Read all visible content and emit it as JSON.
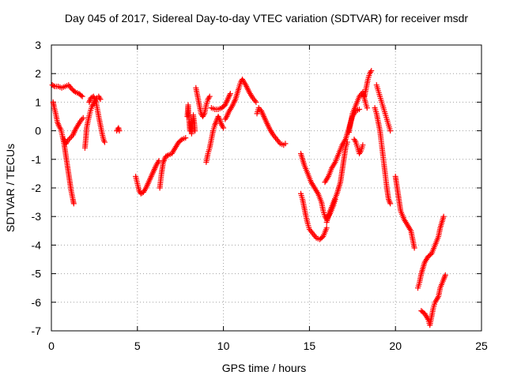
{
  "chart_data": {
    "type": "scatter",
    "title": "Day 045 of 2017, Sidereal Day-to-day VTEC variation (SDTVAR) for receiver msdr",
    "xlabel": "GPS time / hours",
    "ylabel": "SDTVAR / TECUs",
    "xlim": [
      0,
      25
    ],
    "ylim": [
      -7,
      3
    ],
    "xticks": [
      0,
      5,
      10,
      15,
      20,
      25
    ],
    "yticks": [
      3,
      2,
      1,
      0,
      -1,
      -2,
      -3,
      -4,
      -5,
      -6,
      -7
    ],
    "grid": true,
    "marker": "plus",
    "series": [
      {
        "name": "SDTVAR",
        "color": "#ff0000",
        "segments": [
          [
            [
              0.05,
              1.6
            ],
            [
              0.2,
              1.55
            ],
            [
              0.4,
              1.55
            ],
            [
              0.6,
              1.5
            ],
            [
              0.8,
              1.55
            ],
            [
              1.0,
              1.6
            ],
            [
              1.2,
              1.45
            ],
            [
              1.4,
              1.35
            ],
            [
              1.6,
              1.3
            ],
            [
              1.8,
              1.2
            ]
          ],
          [
            [
              0.1,
              1.0
            ],
            [
              0.15,
              0.85
            ],
            [
              0.25,
              0.6
            ],
            [
              0.35,
              0.3
            ],
            [
              0.45,
              0.15
            ],
            [
              0.55,
              0.05
            ],
            [
              0.65,
              -0.2
            ],
            [
              0.75,
              -0.5
            ],
            [
              0.85,
              -0.9
            ],
            [
              0.95,
              -1.3
            ],
            [
              1.05,
              -1.7
            ],
            [
              1.15,
              -2.1
            ],
            [
              1.25,
              -2.4
            ],
            [
              1.3,
              -2.55
            ]
          ],
          [
            [
              0.75,
              -0.3
            ],
            [
              0.85,
              -0.45
            ],
            [
              0.95,
              -0.35
            ],
            [
              1.1,
              -0.25
            ],
            [
              1.25,
              -0.15
            ],
            [
              1.4,
              0.05
            ],
            [
              1.55,
              0.2
            ],
            [
              1.7,
              0.35
            ],
            [
              1.85,
              0.45
            ]
          ],
          [
            [
              1.95,
              -0.6
            ],
            [
              2.0,
              -0.3
            ],
            [
              2.05,
              0.1
            ],
            [
              2.15,
              0.4
            ],
            [
              2.25,
              0.65
            ],
            [
              2.35,
              0.85
            ],
            [
              2.45,
              0.95
            ],
            [
              2.55,
              1.05
            ],
            [
              2.65,
              1.15
            ],
            [
              2.75,
              1.2
            ],
            [
              2.85,
              1.1
            ]
          ],
          [
            [
              2.2,
              1.0
            ],
            [
              2.3,
              1.15
            ],
            [
              2.45,
              1.2
            ],
            [
              2.6,
              1.0
            ],
            [
              2.75,
              0.5
            ],
            [
              2.85,
              0.2
            ],
            [
              2.95,
              -0.1
            ],
            [
              3.05,
              -0.35
            ],
            [
              3.1,
              -0.4
            ]
          ],
          [
            [
              3.8,
              0.0
            ],
            [
              3.85,
              0.05
            ],
            [
              3.9,
              0.1
            ],
            [
              3.95,
              0.0
            ]
          ],
          [
            [
              4.9,
              -1.6
            ],
            [
              5.0,
              -1.85
            ],
            [
              5.1,
              -2.1
            ],
            [
              5.2,
              -2.2
            ],
            [
              5.35,
              -2.15
            ],
            [
              5.5,
              -2.0
            ],
            [
              5.65,
              -1.8
            ],
            [
              5.8,
              -1.6
            ],
            [
              5.95,
              -1.4
            ],
            [
              6.1,
              -1.2
            ],
            [
              6.25,
              -1.05
            ]
          ],
          [
            [
              6.3,
              -2.0
            ],
            [
              6.4,
              -1.5
            ],
            [
              6.5,
              -1.1
            ],
            [
              6.65,
              -0.9
            ],
            [
              6.8,
              -0.85
            ],
            [
              7.0,
              -0.8
            ],
            [
              7.2,
              -0.6
            ],
            [
              7.4,
              -0.4
            ],
            [
              7.6,
              -0.3
            ],
            [
              7.8,
              -0.25
            ]
          ],
          [
            [
              7.9,
              0.5
            ],
            [
              7.95,
              0.9
            ],
            [
              8.0,
              0.4
            ],
            [
              8.05,
              0.0
            ],
            [
              8.1,
              0.3
            ],
            [
              8.15,
              -0.1
            ],
            [
              8.2,
              0.2
            ],
            [
              8.25,
              0.55
            ],
            [
              8.3,
              0.3
            ],
            [
              8.35,
              0.0
            ]
          ],
          [
            [
              8.4,
              1.5
            ],
            [
              8.5,
              1.2
            ],
            [
              8.6,
              0.9
            ],
            [
              8.7,
              0.6
            ],
            [
              8.8,
              0.5
            ],
            [
              8.9,
              0.6
            ],
            [
              9.0,
              0.9
            ],
            [
              9.1,
              1.1
            ],
            [
              9.2,
              1.2
            ]
          ],
          [
            [
              9.0,
              -1.1
            ],
            [
              9.1,
              -0.8
            ],
            [
              9.2,
              -0.6
            ],
            [
              9.3,
              -0.3
            ],
            [
              9.4,
              0.0
            ],
            [
              9.5,
              0.2
            ],
            [
              9.6,
              0.35
            ],
            [
              9.7,
              0.5
            ],
            [
              9.8,
              0.35
            ],
            [
              9.9,
              0.2
            ],
            [
              10.0,
              0.1
            ]
          ],
          [
            [
              9.3,
              0.8
            ],
            [
              9.5,
              0.75
            ],
            [
              9.7,
              0.75
            ],
            [
              9.9,
              0.8
            ],
            [
              10.1,
              0.9
            ],
            [
              10.25,
              1.1
            ],
            [
              10.4,
              1.3
            ]
          ],
          [
            [
              10.1,
              0.4
            ],
            [
              10.2,
              0.5
            ],
            [
              10.3,
              0.65
            ],
            [
              10.5,
              0.85
            ],
            [
              10.7,
              1.1
            ],
            [
              10.9,
              1.5
            ],
            [
              11.0,
              1.7
            ],
            [
              11.1,
              1.8
            ],
            [
              11.3,
              1.6
            ],
            [
              11.5,
              1.35
            ],
            [
              11.7,
              1.15
            ],
            [
              11.9,
              1.0
            ]
          ],
          [
            [
              11.95,
              0.6
            ],
            [
              12.05,
              0.8
            ],
            [
              12.2,
              0.7
            ],
            [
              12.35,
              0.5
            ],
            [
              12.5,
              0.3
            ],
            [
              12.7,
              0.05
            ],
            [
              12.9,
              -0.15
            ],
            [
              13.1,
              -0.3
            ],
            [
              13.3,
              -0.45
            ],
            [
              13.5,
              -0.5
            ],
            [
              13.6,
              -0.45
            ]
          ],
          [
            [
              14.5,
              -2.2
            ],
            [
              14.6,
              -2.4
            ],
            [
              14.7,
              -2.7
            ],
            [
              14.8,
              -3.0
            ],
            [
              14.9,
              -3.25
            ],
            [
              15.0,
              -3.45
            ],
            [
              15.2,
              -3.6
            ],
            [
              15.4,
              -3.75
            ],
            [
              15.6,
              -3.8
            ],
            [
              15.8,
              -3.7
            ],
            [
              16.0,
              -3.4
            ]
          ],
          [
            [
              14.5,
              -0.8
            ],
            [
              14.7,
              -1.2
            ],
            [
              14.9,
              -1.5
            ],
            [
              15.1,
              -1.8
            ],
            [
              15.3,
              -2.0
            ],
            [
              15.5,
              -2.2
            ],
            [
              15.7,
              -2.5
            ],
            [
              15.8,
              -2.8
            ],
            [
              15.9,
              -3.0
            ],
            [
              16.0,
              -3.1
            ],
            [
              16.2,
              -2.9
            ],
            [
              16.4,
              -2.6
            ],
            [
              16.5,
              -2.4
            ]
          ],
          [
            [
              16.0,
              -3.2
            ],
            [
              16.2,
              -2.8
            ],
            [
              16.4,
              -2.5
            ],
            [
              16.6,
              -2.2
            ],
            [
              16.8,
              -1.8
            ],
            [
              16.9,
              -1.4
            ],
            [
              17.0,
              -1.0
            ],
            [
              17.1,
              -0.6
            ],
            [
              17.2,
              -0.4
            ]
          ],
          [
            [
              15.9,
              -1.8
            ],
            [
              16.1,
              -1.6
            ],
            [
              16.3,
              -1.3
            ],
            [
              16.5,
              -1.1
            ],
            [
              16.7,
              -0.8
            ],
            [
              16.9,
              -0.5
            ],
            [
              17.1,
              -0.3
            ],
            [
              17.3,
              0.1
            ],
            [
              17.5,
              0.5
            ],
            [
              17.7,
              0.7
            ],
            [
              17.9,
              0.75
            ]
          ],
          [
            [
              17.3,
              -0.05
            ],
            [
              17.4,
              0.3
            ],
            [
              17.5,
              0.6
            ],
            [
              17.7,
              0.9
            ],
            [
              17.9,
              1.2
            ],
            [
              18.1,
              1.35
            ],
            [
              18.25,
              1.0
            ],
            [
              18.35,
              0.8
            ]
          ],
          [
            [
              18.2,
              1.2
            ],
            [
              18.3,
              1.5
            ],
            [
              18.4,
              1.8
            ],
            [
              18.5,
              2.0
            ],
            [
              18.6,
              2.1
            ]
          ],
          [
            [
              17.6,
              -0.3
            ],
            [
              17.7,
              -0.4
            ],
            [
              17.8,
              -0.6
            ],
            [
              17.9,
              -0.8
            ],
            [
              18.0,
              -0.7
            ],
            [
              18.1,
              -0.5
            ]
          ],
          [
            [
              18.8,
              0.8
            ],
            [
              18.9,
              0.6
            ],
            [
              19.0,
              0.3
            ],
            [
              19.1,
              0.0
            ],
            [
              19.2,
              -0.5
            ],
            [
              19.3,
              -1.0
            ],
            [
              19.4,
              -1.5
            ],
            [
              19.5,
              -2.0
            ],
            [
              19.6,
              -2.4
            ],
            [
              19.7,
              -2.55
            ]
          ],
          [
            [
              18.9,
              1.6
            ],
            [
              19.0,
              1.4
            ],
            [
              19.1,
              1.2
            ],
            [
              19.2,
              1.0
            ],
            [
              19.3,
              0.8
            ],
            [
              19.4,
              0.6
            ],
            [
              19.5,
              0.4
            ],
            [
              19.6,
              0.2
            ],
            [
              19.7,
              0.0
            ]
          ],
          [
            [
              20.0,
              -1.6
            ],
            [
              20.1,
              -2.0
            ],
            [
              20.2,
              -2.4
            ],
            [
              20.3,
              -2.8
            ],
            [
              20.5,
              -3.1
            ],
            [
              20.7,
              -3.3
            ],
            [
              20.9,
              -3.5
            ],
            [
              21.0,
              -3.8
            ],
            [
              21.1,
              -4.1
            ]
          ],
          [
            [
              21.3,
              -5.5
            ],
            [
              21.4,
              -5.3
            ],
            [
              21.5,
              -5.0
            ],
            [
              21.7,
              -4.6
            ],
            [
              21.9,
              -4.4
            ],
            [
              22.1,
              -4.3
            ],
            [
              22.3,
              -4.0
            ],
            [
              22.5,
              -3.7
            ],
            [
              22.6,
              -3.4
            ],
            [
              22.8,
              -3.0
            ]
          ],
          [
            [
              21.5,
              -6.3
            ],
            [
              21.7,
              -6.4
            ],
            [
              21.9,
              -6.6
            ],
            [
              22.0,
              -6.8
            ],
            [
              22.1,
              -6.5
            ],
            [
              22.2,
              -6.2
            ],
            [
              22.3,
              -6.0
            ],
            [
              22.5,
              -5.8
            ],
            [
              22.6,
              -5.5
            ],
            [
              22.8,
              -5.2
            ],
            [
              22.9,
              -5.05
            ]
          ]
        ]
      }
    ]
  }
}
